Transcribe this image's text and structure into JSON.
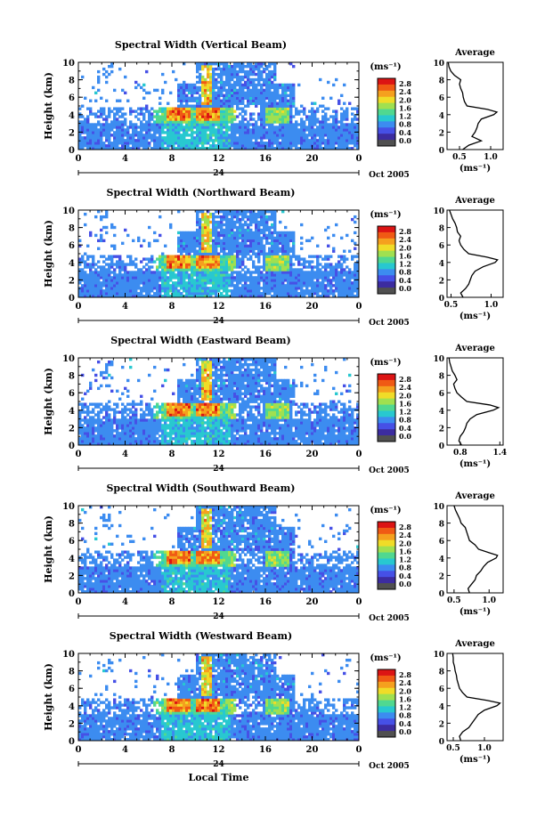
{
  "figure": {
    "xlabel": "Local Time",
    "date_label": "Oct 2005",
    "date_tick": "24",
    "ylabel": "Height (km)",
    "colorbar_unit": "(ms⁻¹)",
    "avg_title": "Average",
    "avg_xlabel": "(ms⁻¹)"
  },
  "colorbar": {
    "ticks": [
      "2.8",
      "2.4",
      "2.0",
      "1.6",
      "1.2",
      "0.8",
      "0.4",
      "0.0"
    ],
    "colors": [
      "#dc1414",
      "#f05a14",
      "#f5a01e",
      "#f0dc28",
      "#a0e050",
      "#50d890",
      "#28c8d0",
      "#3c8cf0",
      "#4650e6",
      "#3c2ca0",
      "#505050"
    ]
  },
  "chart_data": [
    {
      "type": "heatmap",
      "title": "Spectral Width (Vertical Beam)",
      "xlabel": "Local Time",
      "ylabel": "Height (km)",
      "xlim": [
        0,
        24
      ],
      "ylim": [
        0,
        10
      ],
      "xticks": [
        "0",
        "4",
        "8",
        "12",
        "16",
        "20",
        "0"
      ],
      "yticks": [
        "0",
        "2",
        "4",
        "6",
        "8",
        "10"
      ],
      "avg_profile": {
        "xlim": [
          0.3,
          1.2
        ],
        "xticks": [
          "0.5",
          "1.0"
        ],
        "heights": [
          0,
          0.5,
          1,
          1.5,
          2,
          2.5,
          3,
          3.5,
          4,
          4.3,
          4.6,
          5,
          5.5,
          6,
          6.5,
          7,
          7.5,
          8,
          8.5,
          9,
          9.5,
          10
        ],
        "values": [
          0.55,
          0.65,
          0.85,
          0.7,
          0.75,
          0.78,
          0.8,
          0.85,
          1.05,
          1.1,
          0.95,
          0.62,
          0.58,
          0.56,
          0.55,
          0.52,
          0.5,
          0.52,
          0.42,
          0.36,
          0.33,
          0.32
        ]
      }
    },
    {
      "type": "heatmap",
      "title": "Spectral Width (Northward Beam)",
      "xlabel": "Local Time",
      "ylabel": "Height (km)",
      "xlim": [
        0,
        24
      ],
      "ylim": [
        0,
        10
      ],
      "xticks": [
        "0",
        "4",
        "8",
        "12",
        "16",
        "20",
        "0"
      ],
      "yticks": [
        "0",
        "2",
        "4",
        "6",
        "8",
        "10"
      ],
      "avg_profile": {
        "xlim": [
          0.45,
          1.15
        ],
        "xticks": [
          "0.5",
          "1.0"
        ],
        "heights": [
          0,
          0.5,
          1,
          1.5,
          2,
          2.5,
          3,
          3.5,
          4,
          4.3,
          4.6,
          5,
          5.5,
          6,
          6.5,
          7,
          7.5,
          8,
          8.5,
          9,
          9.5,
          10
        ],
        "values": [
          0.65,
          0.62,
          0.68,
          0.72,
          0.74,
          0.76,
          0.8,
          0.9,
          1.05,
          1.08,
          0.95,
          0.72,
          0.66,
          0.62,
          0.6,
          0.62,
          0.58,
          0.57,
          0.55,
          0.52,
          0.5,
          0.48
        ]
      }
    },
    {
      "type": "heatmap",
      "title": "Spectral Width (Eastward Beam)",
      "xlabel": "Local Time",
      "ylabel": "Height (km)",
      "xlim": [
        0,
        24
      ],
      "ylim": [
        0,
        10
      ],
      "xticks": [
        "0",
        "4",
        "8",
        "12",
        "16",
        "20",
        "0"
      ],
      "yticks": [
        "0",
        "2",
        "4",
        "6",
        "8",
        "10"
      ],
      "avg_profile": {
        "xlim": [
          0.6,
          1.45
        ],
        "xticks": [
          "0.8",
          "1.4"
        ],
        "heights": [
          0,
          0.5,
          1,
          1.5,
          2,
          2.5,
          3,
          3.5,
          4,
          4.3,
          4.6,
          5,
          5.5,
          6,
          6.5,
          7,
          7.5,
          8,
          8.5,
          9,
          9.5,
          10
        ],
        "values": [
          0.82,
          0.78,
          0.8,
          0.85,
          0.88,
          0.9,
          0.95,
          1.05,
          1.3,
          1.38,
          1.25,
          0.9,
          0.82,
          0.75,
          0.72,
          0.7,
          0.75,
          0.72,
          0.68,
          0.66,
          0.64,
          0.63
        ]
      }
    },
    {
      "type": "heatmap",
      "title": "Spectral Width (Southward Beam)",
      "xlabel": "Local Time",
      "ylabel": "Height (km)",
      "xlim": [
        0,
        24
      ],
      "ylim": [
        0,
        10
      ],
      "xticks": [
        "0",
        "4",
        "8",
        "12",
        "16",
        "20",
        "0"
      ],
      "yticks": [
        "0",
        "2",
        "4",
        "6",
        "8",
        "10"
      ],
      "avg_profile": {
        "xlim": [
          0.4,
          1.2
        ],
        "xticks": [
          "0.5",
          "1.0"
        ],
        "heights": [
          0,
          0.5,
          1,
          1.5,
          2,
          2.5,
          3,
          3.5,
          4,
          4.3,
          4.6,
          5,
          5.5,
          6,
          6.5,
          7,
          7.5,
          8,
          8.5,
          9,
          9.5,
          10
        ],
        "values": [
          0.72,
          0.7,
          0.75,
          0.8,
          0.82,
          0.88,
          0.92,
          0.98,
          1.1,
          1.12,
          1.0,
          0.85,
          0.8,
          0.72,
          0.7,
          0.68,
          0.66,
          0.6,
          0.58,
          0.55,
          0.52,
          0.5
        ]
      }
    },
    {
      "type": "heatmap",
      "title": "Spectral Width (Westward Beam)",
      "xlabel": "Local Time",
      "ylabel": "Height (km)",
      "xlim": [
        0,
        24
      ],
      "ylim": [
        0,
        10
      ],
      "xticks": [
        "0",
        "4",
        "8",
        "12",
        "16",
        "20",
        "0"
      ],
      "yticks": [
        "0",
        "2",
        "4",
        "6",
        "8",
        "10"
      ],
      "avg_profile": {
        "xlim": [
          0.4,
          1.3
        ],
        "xticks": [
          "0.5",
          "1.0"
        ],
        "heights": [
          0,
          0.5,
          1,
          1.5,
          2,
          2.5,
          3,
          3.5,
          4,
          4.3,
          4.6,
          5,
          5.5,
          6,
          6.5,
          7,
          7.5,
          8,
          8.5,
          9,
          9.5,
          10
        ],
        "values": [
          0.62,
          0.6,
          0.65,
          0.75,
          0.8,
          0.85,
          0.9,
          1.0,
          1.2,
          1.25,
          1.05,
          0.72,
          0.65,
          0.6,
          0.58,
          0.56,
          0.55,
          0.53,
          0.52,
          0.5,
          0.5,
          0.49
        ]
      }
    }
  ]
}
